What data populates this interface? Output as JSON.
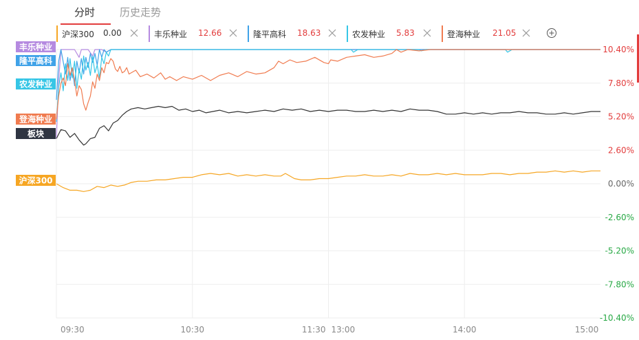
{
  "tabs": [
    {
      "label": "分时",
      "active": true
    },
    {
      "label": "历史走势",
      "active": false
    }
  ],
  "legend": [
    {
      "name": "沪深300",
      "value": "0.00",
      "color": "#f6a623"
    },
    {
      "name": "丰乐种业",
      "value": "12.66",
      "color": "#b58ae0"
    },
    {
      "name": "隆平高科",
      "value": "18.63",
      "color": "#3fa2e8"
    },
    {
      "name": "农发种业",
      "value": "5.83",
      "color": "#36c6e6"
    },
    {
      "name": "登海种业",
      "value": "21.05",
      "color": "#f07b4f"
    }
  ],
  "colors": {
    "up": "#e23c3c",
    "down": "#27a844",
    "zero": "#666666",
    "board": "#333333",
    "grid": "#eeeeee"
  },
  "icons": {
    "add": "plus-circle-icon",
    "close": "close-x-icon"
  },
  "chart_data": {
    "type": "line",
    "x_ticks": [
      "09:30",
      "10:30",
      "11:30",
      "13:00",
      "14:00",
      "15:00"
    ],
    "y_ticks": [
      "10.40%",
      "7.80%",
      "5.20%",
      "2.60%",
      "0.00%",
      "-2.60%",
      "-5.20%",
      "-7.80%",
      "-10.40%"
    ],
    "ylim": [
      -10.4,
      10.4
    ],
    "x_range_minutes": [
      0,
      240
    ],
    "series": [
      {
        "name": "丰乐种业",
        "tag": "丰乐种业",
        "color": "#b58ae0",
        "tag_color": "#b58ae0",
        "points": [
          [
            0,
            3.5
          ],
          [
            1,
            8.0
          ],
          [
            2,
            10.4
          ],
          [
            5,
            10.4
          ],
          [
            8,
            10.4
          ],
          [
            10,
            9.8
          ],
          [
            11,
            10.4
          ],
          [
            14,
            10.4
          ],
          [
            16,
            9.9
          ],
          [
            17,
            10.4
          ],
          [
            20,
            10.4
          ],
          [
            22,
            10.2
          ],
          [
            24,
            10.4
          ],
          [
            240,
            10.4
          ]
        ]
      },
      {
        "name": "隆平高科",
        "tag": "隆平高科",
        "color": "#3fa2e8",
        "tag_color": "#3fa2e8",
        "points": [
          [
            0,
            6.5
          ],
          [
            1,
            9.5
          ],
          [
            2,
            10.4
          ],
          [
            4,
            8.5
          ],
          [
            5,
            9.8
          ],
          [
            6,
            8.0
          ],
          [
            7,
            9.0
          ],
          [
            8,
            7.6
          ],
          [
            9,
            9.5
          ],
          [
            10,
            8.6
          ],
          [
            11,
            9.7
          ],
          [
            12,
            8.5
          ],
          [
            13,
            9.8
          ],
          [
            14,
            9.0
          ],
          [
            15,
            10.1
          ],
          [
            16,
            9.4
          ],
          [
            17,
            10.1
          ],
          [
            18,
            9.2
          ],
          [
            19,
            10.4
          ],
          [
            20,
            9.8
          ],
          [
            21,
            10.4
          ],
          [
            22,
            10.2
          ],
          [
            24,
            10.4
          ],
          [
            240,
            10.4
          ]
        ]
      },
      {
        "name": "农发种业",
        "tag": "农发种业",
        "color": "#36c6e6",
        "tag_color": "#36c6e6",
        "points": [
          [
            0,
            4.8
          ],
          [
            1,
            7.5
          ],
          [
            2,
            8.6
          ],
          [
            3,
            7.2
          ],
          [
            4,
            9.3
          ],
          [
            5,
            8.0
          ],
          [
            6,
            9.7
          ],
          [
            7,
            8.2
          ],
          [
            8,
            9.5
          ],
          [
            9,
            7.4
          ],
          [
            10,
            8.9
          ],
          [
            11,
            8.1
          ],
          [
            12,
            9.9
          ],
          [
            13,
            8.8
          ],
          [
            14,
            9.4
          ],
          [
            15,
            8.4
          ],
          [
            16,
            9.9
          ],
          [
            17,
            8.6
          ],
          [
            18,
            9.2
          ],
          [
            19,
            8.2
          ],
          [
            20,
            9.8
          ],
          [
            21,
            9.3
          ],
          [
            22,
            10.2
          ],
          [
            23,
            9.9
          ],
          [
            24,
            10.4
          ],
          [
            130,
            10.4
          ],
          [
            131,
            10.2
          ],
          [
            133,
            10.4
          ],
          [
            160,
            10.4
          ],
          [
            161,
            10.3
          ],
          [
            163,
            10.4
          ],
          [
            198,
            10.4
          ],
          [
            199,
            10.2
          ],
          [
            201,
            10.4
          ],
          [
            240,
            10.4
          ]
        ]
      },
      {
        "name": "登海种业",
        "tag": "登海种业",
        "color": "#f07b4f",
        "tag_color": "#f07b4f",
        "points": [
          [
            0,
            5.0
          ],
          [
            1,
            6.8
          ],
          [
            2,
            7.8
          ],
          [
            3,
            8.2
          ],
          [
            4,
            7.6
          ],
          [
            5,
            9.3
          ],
          [
            6,
            8.4
          ],
          [
            7,
            9.0
          ],
          [
            8,
            8.0
          ],
          [
            9,
            6.8
          ],
          [
            10,
            7.6
          ],
          [
            11,
            7.3
          ],
          [
            12,
            6.2
          ],
          [
            13,
            5.7
          ],
          [
            14,
            6.3
          ],
          [
            15,
            6.8
          ],
          [
            16,
            7.9
          ],
          [
            17,
            7.4
          ],
          [
            18,
            8.5
          ],
          [
            19,
            8.0
          ],
          [
            20,
            9.0
          ],
          [
            21,
            8.6
          ],
          [
            22,
            9.4
          ],
          [
            23,
            9.3
          ],
          [
            24,
            9.7
          ],
          [
            25,
            9.5
          ],
          [
            26,
            8.9
          ],
          [
            27,
            8.7
          ],
          [
            28,
            9.1
          ],
          [
            29,
            8.6
          ],
          [
            30,
            8.7
          ],
          [
            31,
            9.0
          ],
          [
            32,
            8.5
          ],
          [
            35,
            8.8
          ],
          [
            37,
            8.3
          ],
          [
            40,
            8.5
          ],
          [
            43,
            8.2
          ],
          [
            46,
            8.6
          ],
          [
            48,
            8.1
          ],
          [
            50,
            8.3
          ],
          [
            53,
            8.0
          ],
          [
            56,
            8.3
          ],
          [
            60,
            8.1
          ],
          [
            64,
            8.4
          ],
          [
            68,
            8.0
          ],
          [
            72,
            8.4
          ],
          [
            76,
            8.6
          ],
          [
            80,
            8.3
          ],
          [
            84,
            8.7
          ],
          [
            88,
            8.5
          ],
          [
            92,
            8.6
          ],
          [
            96,
            9.0
          ],
          [
            98,
            9.5
          ],
          [
            100,
            9.3
          ],
          [
            103,
            9.6
          ],
          [
            106,
            9.4
          ],
          [
            110,
            9.5
          ],
          [
            114,
            9.8
          ],
          [
            118,
            9.4
          ],
          [
            120,
            9.3
          ],
          [
            121,
            9.6
          ],
          [
            124,
            9.5
          ],
          [
            128,
            9.8
          ],
          [
            132,
            9.9
          ],
          [
            136,
            10.0
          ],
          [
            140,
            9.8
          ],
          [
            144,
            9.9
          ],
          [
            148,
            10.1
          ],
          [
            150,
            10.4
          ],
          [
            152,
            10.2
          ],
          [
            155,
            10.4
          ],
          [
            160,
            10.3
          ],
          [
            165,
            10.4
          ],
          [
            240,
            10.4
          ]
        ]
      },
      {
        "name": "板块",
        "tag": "板块",
        "color": "#333333",
        "tag_color": "#2f3542",
        "points": [
          [
            0,
            3.5
          ],
          [
            2,
            4.2
          ],
          [
            4,
            4.1
          ],
          [
            6,
            3.6
          ],
          [
            8,
            3.9
          ],
          [
            10,
            3.4
          ],
          [
            12,
            3.0
          ],
          [
            13,
            3.1
          ],
          [
            15,
            3.5
          ],
          [
            17,
            3.6
          ],
          [
            19,
            4.3
          ],
          [
            21,
            4.5
          ],
          [
            23,
            4.1
          ],
          [
            25,
            4.7
          ],
          [
            27,
            4.9
          ],
          [
            29,
            5.3
          ],
          [
            31,
            5.6
          ],
          [
            33,
            5.8
          ],
          [
            36,
            5.9
          ],
          [
            39,
            5.8
          ],
          [
            42,
            5.9
          ],
          [
            45,
            6.0
          ],
          [
            48,
            5.9
          ],
          [
            51,
            6.0
          ],
          [
            54,
            5.7
          ],
          [
            57,
            5.8
          ],
          [
            60,
            5.6
          ],
          [
            63,
            5.7
          ],
          [
            66,
            5.5
          ],
          [
            69,
            5.6
          ],
          [
            72,
            5.7
          ],
          [
            76,
            5.5
          ],
          [
            80,
            5.6
          ],
          [
            84,
            5.5
          ],
          [
            88,
            5.6
          ],
          [
            92,
            5.7
          ],
          [
            96,
            5.6
          ],
          [
            100,
            5.8
          ],
          [
            104,
            5.7
          ],
          [
            108,
            5.8
          ],
          [
            112,
            5.6
          ],
          [
            116,
            5.7
          ],
          [
            120,
            5.6
          ],
          [
            124,
            5.7
          ],
          [
            128,
            5.7
          ],
          [
            132,
            5.6
          ],
          [
            136,
            5.6
          ],
          [
            140,
            5.7
          ],
          [
            144,
            5.6
          ],
          [
            148,
            5.7
          ],
          [
            152,
            5.6
          ],
          [
            156,
            5.8
          ],
          [
            160,
            5.7
          ],
          [
            164,
            5.7
          ],
          [
            168,
            5.6
          ],
          [
            172,
            5.4
          ],
          [
            176,
            5.4
          ],
          [
            180,
            5.5
          ],
          [
            184,
            5.4
          ],
          [
            188,
            5.5
          ],
          [
            192,
            5.4
          ],
          [
            196,
            5.5
          ],
          [
            200,
            5.5
          ],
          [
            204,
            5.6
          ],
          [
            208,
            5.5
          ],
          [
            212,
            5.5
          ],
          [
            216,
            5.4
          ],
          [
            220,
            5.4
          ],
          [
            224,
            5.5
          ],
          [
            228,
            5.4
          ],
          [
            232,
            5.5
          ],
          [
            236,
            5.6
          ],
          [
            240,
            5.6
          ]
        ]
      },
      {
        "name": "沪深300",
        "tag": "沪深300",
        "color": "#f6a623",
        "tag_color": "#f6a623",
        "points": [
          [
            0,
            0.0
          ],
          [
            3,
            -0.3
          ],
          [
            6,
            -0.5
          ],
          [
            9,
            -0.5
          ],
          [
            12,
            -0.6
          ],
          [
            15,
            -0.5
          ],
          [
            18,
            -0.2
          ],
          [
            21,
            -0.3
          ],
          [
            24,
            -0.1
          ],
          [
            27,
            -0.2
          ],
          [
            30,
            -0.1
          ],
          [
            33,
            0.1
          ],
          [
            36,
            0.2
          ],
          [
            40,
            0.2
          ],
          [
            44,
            0.3
          ],
          [
            48,
            0.3
          ],
          [
            52,
            0.4
          ],
          [
            56,
            0.5
          ],
          [
            60,
            0.5
          ],
          [
            64,
            0.7
          ],
          [
            68,
            0.8
          ],
          [
            72,
            0.7
          ],
          [
            76,
            0.8
          ],
          [
            80,
            0.6
          ],
          [
            84,
            0.7
          ],
          [
            88,
            0.6
          ],
          [
            92,
            0.7
          ],
          [
            96,
            0.6
          ],
          [
            99,
            0.6
          ],
          [
            101,
            0.8
          ],
          [
            105,
            0.4
          ],
          [
            108,
            0.3
          ],
          [
            112,
            0.3
          ],
          [
            116,
            0.4
          ],
          [
            120,
            0.4
          ],
          [
            124,
            0.5
          ],
          [
            128,
            0.6
          ],
          [
            132,
            0.6
          ],
          [
            136,
            0.7
          ],
          [
            140,
            0.6
          ],
          [
            144,
            0.6
          ],
          [
            148,
            0.7
          ],
          [
            152,
            0.6
          ],
          [
            156,
            0.8
          ],
          [
            160,
            0.7
          ],
          [
            164,
            0.7
          ],
          [
            168,
            0.8
          ],
          [
            172,
            0.7
          ],
          [
            176,
            0.8
          ],
          [
            180,
            0.7
          ],
          [
            184,
            0.7
          ],
          [
            188,
            0.7
          ],
          [
            192,
            0.8
          ],
          [
            196,
            0.8
          ],
          [
            200,
            0.7
          ],
          [
            204,
            0.8
          ],
          [
            208,
            0.8
          ],
          [
            212,
            0.9
          ],
          [
            216,
            0.9
          ],
          [
            220,
            1.0
          ],
          [
            224,
            0.9
          ],
          [
            228,
            1.0
          ],
          [
            232,
            0.9
          ],
          [
            236,
            1.0
          ],
          [
            240,
            1.0
          ]
        ]
      }
    ]
  }
}
